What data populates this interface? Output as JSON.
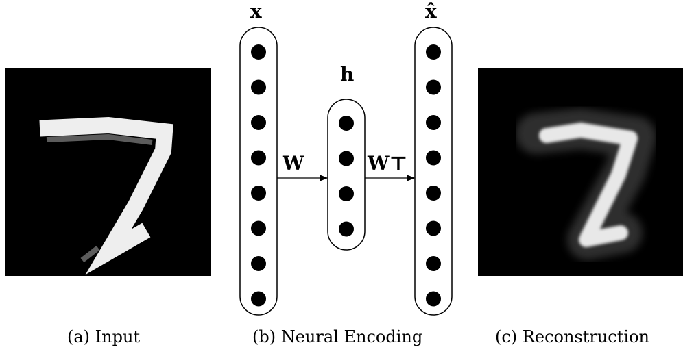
{
  "panels": {
    "input": {
      "caption": "(a) Input"
    },
    "encoding": {
      "caption": "(b) Neural Encoding"
    },
    "reconstruction": {
      "caption": "(c) Reconstruction"
    }
  },
  "network": {
    "input_layer": {
      "label": "x",
      "nodes": 8
    },
    "hidden_layer": {
      "label": "h",
      "nodes": 4
    },
    "output_layer": {
      "label": "x̂",
      "nodes": 8
    },
    "encoder_weight": "W",
    "decoder_weight": "W⊤"
  },
  "colors": {
    "background": "#ffffff",
    "ink": "#000000",
    "digit": "#f2f2f2"
  }
}
